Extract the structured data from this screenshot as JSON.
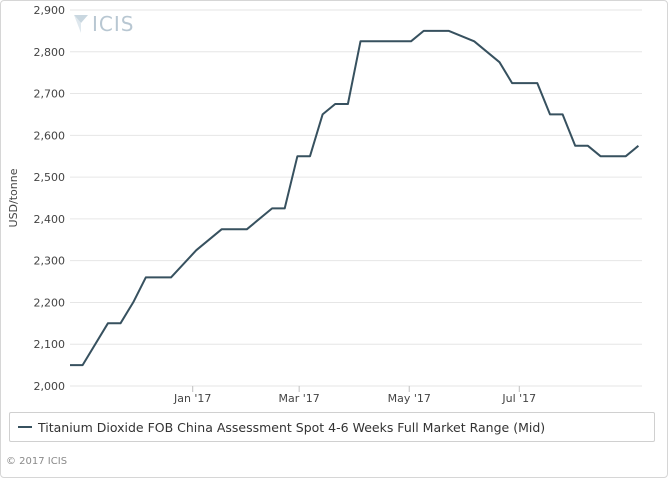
{
  "chart_data": {
    "type": "line",
    "title": "",
    "xlabel": "",
    "ylabel": "USD/tonne",
    "ylim": [
      2000,
      2900
    ],
    "y_ticks": [
      2000,
      2100,
      2200,
      2300,
      2400,
      2500,
      2600,
      2700,
      2800,
      2900
    ],
    "y_tick_labels": [
      "2,000",
      "2,100",
      "2,200",
      "2,300",
      "2,400",
      "2,500",
      "2,600",
      "2,700",
      "2,800",
      "2,900"
    ],
    "x_tick_labels": [
      "Jan '17",
      "Mar '17",
      "May '17",
      "Jul '17"
    ],
    "x_ticks": [
      "2017-01-01",
      "2017-03-01",
      "2017-05-01",
      "2017-07-01"
    ],
    "xlim": [
      "2016-10-25",
      "2017-09-07"
    ],
    "grid": "horizontal",
    "legend_position": "bottom",
    "series": [
      {
        "name": "Titanium Dioxide FOB China Assessment Spot 4-6 Weeks Full Market Range (Mid)",
        "color": "#37515f",
        "x": [
          "2016-10-25",
          "2016-11-01",
          "2016-11-15",
          "2016-11-22",
          "2016-11-29",
          "2016-12-06",
          "2016-12-13",
          "2016-12-20",
          "2017-01-03",
          "2017-01-17",
          "2017-01-31",
          "2017-02-14",
          "2017-02-21",
          "2017-02-28",
          "2017-03-07",
          "2017-03-14",
          "2017-03-21",
          "2017-03-28",
          "2017-04-04",
          "2017-04-25",
          "2017-05-02",
          "2017-05-09",
          "2017-05-23",
          "2017-06-06",
          "2017-06-20",
          "2017-06-27",
          "2017-07-04",
          "2017-07-11",
          "2017-07-18",
          "2017-07-25",
          "2017-08-01",
          "2017-08-08",
          "2017-08-15",
          "2017-08-22",
          "2017-08-29",
          "2017-09-05"
        ],
        "values": [
          2050,
          2050,
          2150,
          2150,
          2200,
          2260,
          2260,
          2260,
          2325,
          2375,
          2375,
          2425,
          2425,
          2550,
          2550,
          2650,
          2675,
          2675,
          2825,
          2825,
          2825,
          2850,
          2850,
          2825,
          2775,
          2725,
          2725,
          2725,
          2650,
          2650,
          2575,
          2575,
          2550,
          2550,
          2550,
          2575
        ]
      }
    ]
  },
  "logo": {
    "text": "ICIS"
  },
  "copyright": "© 2017 ICIS"
}
